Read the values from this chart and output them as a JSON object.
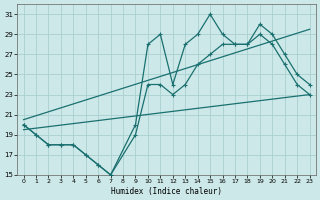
{
  "xlabel": "Humidex (Indice chaleur)",
  "bg_color": "#cde8e8",
  "grid_color": "#aacfcf",
  "line_color": "#1a7070",
  "xlim": [
    -0.5,
    23.5
  ],
  "ylim": [
    15,
    32
  ],
  "xticks": [
    0,
    1,
    2,
    3,
    4,
    5,
    6,
    7,
    8,
    9,
    10,
    11,
    12,
    13,
    14,
    15,
    16,
    17,
    18,
    19,
    20,
    21,
    22,
    23
  ],
  "yticks": [
    15,
    17,
    19,
    21,
    23,
    25,
    27,
    29,
    31
  ],
  "series1_x": [
    0,
    1,
    2,
    3,
    4,
    5,
    6,
    7,
    9,
    10,
    11,
    12,
    13,
    14,
    15,
    16,
    17,
    18,
    19,
    20,
    21,
    22,
    23
  ],
  "series1_y": [
    20,
    19,
    18,
    18,
    18,
    17,
    16,
    15,
    20,
    28,
    29,
    24,
    28,
    29,
    31,
    29,
    28,
    28,
    30,
    29,
    27,
    25,
    24
  ],
  "series2_x": [
    0,
    1,
    2,
    3,
    4,
    5,
    6,
    7,
    9,
    10,
    11,
    12,
    13,
    14,
    15,
    16,
    17,
    18,
    19,
    20,
    21,
    22,
    23
  ],
  "series2_y": [
    20,
    19,
    18,
    18,
    18,
    17,
    16,
    15,
    19,
    24,
    24,
    23,
    24,
    26,
    27,
    28,
    28,
    28,
    29,
    28,
    26,
    24,
    23
  ],
  "trend1_x": [
    0,
    23
  ],
  "trend1_y": [
    19.5,
    23.0
  ],
  "trend2_x": [
    0,
    23
  ],
  "trend2_y": [
    20.5,
    29.5
  ],
  "marker_size": 3.5,
  "linewidth": 0.9
}
